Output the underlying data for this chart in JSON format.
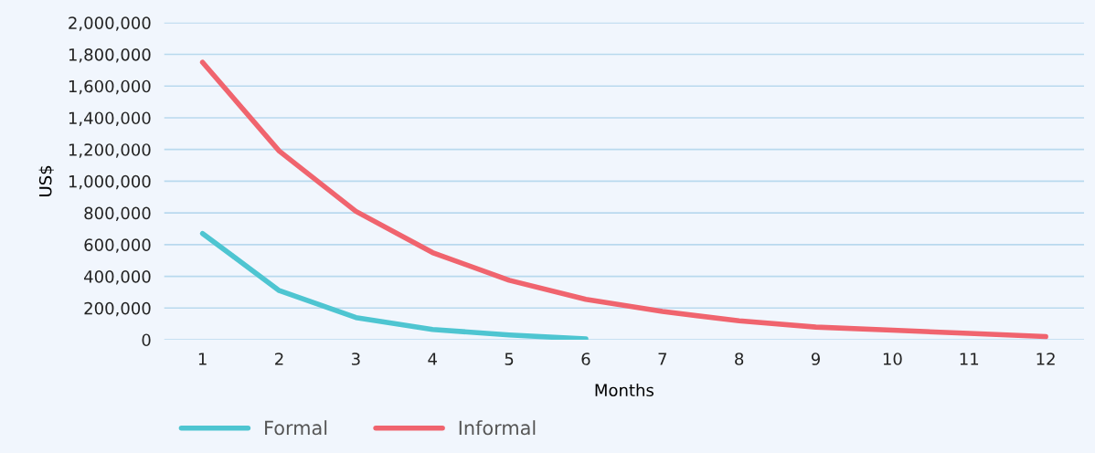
{
  "chart_data": {
    "type": "line",
    "xlabel": "Months",
    "ylabel": "US$",
    "categories": [
      "1",
      "2",
      "3",
      "4",
      "5",
      "6",
      "7",
      "8",
      "9",
      "10",
      "11",
      "12"
    ],
    "series": [
      {
        "name": "Formal",
        "color": "#4ec5d1",
        "values": [
          670000,
          310000,
          140000,
          65000,
          30000,
          5000,
          null,
          null,
          null,
          null,
          null,
          null
        ]
      },
      {
        "name": "Informal",
        "color": "#f0646e",
        "values": [
          1750000,
          1190000,
          810000,
          550000,
          375000,
          255000,
          178000,
          119000,
          80000,
          60000,
          40000,
          20000
        ]
      }
    ],
    "ylim": [
      0,
      2000000
    ],
    "yticks": [
      {
        "value": 0,
        "label": "0"
      },
      {
        "value": 200000,
        "label": "200,000"
      },
      {
        "value": 400000,
        "label": "400,000"
      },
      {
        "value": 600000,
        "label": "600,000"
      },
      {
        "value": 800000,
        "label": "800,000"
      },
      {
        "value": 1000000,
        "label": "1,000,000"
      },
      {
        "value": 1200000,
        "label": "1,200,000"
      },
      {
        "value": 1400000,
        "label": "1,400,000"
      },
      {
        "value": 1600000,
        "label": "1,600,000"
      },
      {
        "value": 1800000,
        "label": "1,800,000"
      },
      {
        "value": 2000000,
        "label": "2,000,000"
      }
    ],
    "grid": "y",
    "legend": "bottom left",
    "marker": "none",
    "line_style": "solid"
  }
}
